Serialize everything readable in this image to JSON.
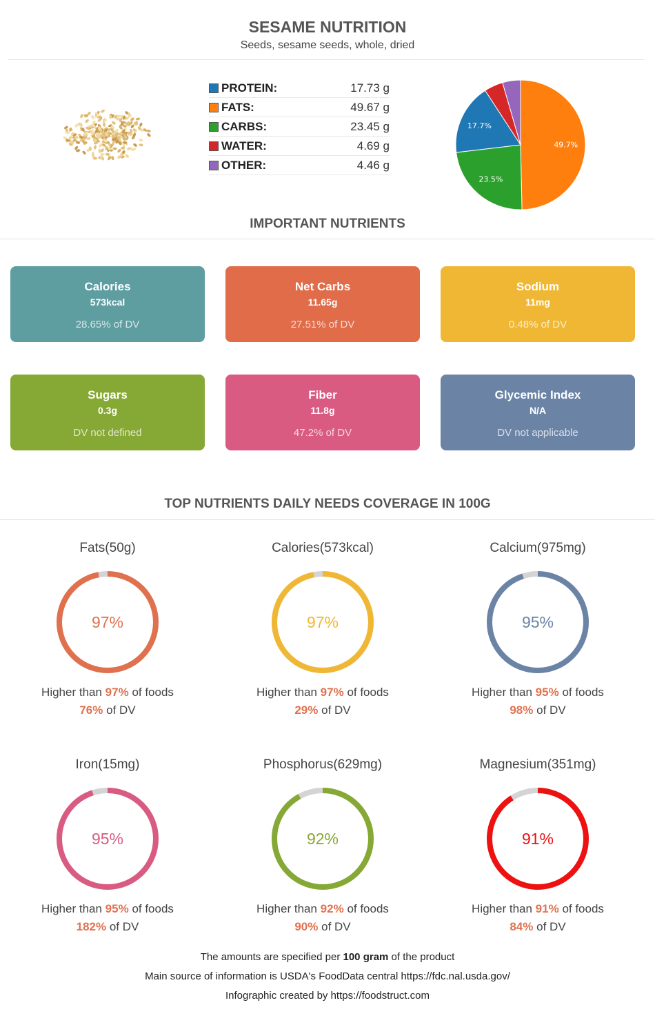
{
  "header": {
    "title": "SESAME NUTRITION",
    "subtitle": "Seeds, sesame seeds, whole, dried"
  },
  "macros": [
    {
      "label": "PROTEIN:",
      "value": "17.73 g",
      "color": "#1f77b4"
    },
    {
      "label": "FATS:",
      "value": "49.67 g",
      "color": "#ff7f0e"
    },
    {
      "label": "CARBS:",
      "value": "23.45 g",
      "color": "#2ca02c"
    },
    {
      "label": "WATER:",
      "value": "4.69 g",
      "color": "#d62728"
    },
    {
      "label": "OTHER:",
      "value": "4.46 g",
      "color": "#9467bd"
    }
  ],
  "chart_data": {
    "type": "pie",
    "slices": [
      {
        "label": "49.7%",
        "value": 49.7,
        "color": "#ff7f0e"
      },
      {
        "label": "23.5%",
        "value": 23.5,
        "color": "#2ca02c"
      },
      {
        "label": "17.7%",
        "value": 17.7,
        "color": "#1f77b4"
      },
      {
        "label": "",
        "value": 4.7,
        "color": "#d62728"
      },
      {
        "label": "",
        "value": 4.5,
        "color": "#9467bd"
      }
    ]
  },
  "important": {
    "title": "IMPORTANT NUTRIENTS",
    "cards": [
      {
        "name": "Calories",
        "value": "573kcal",
        "dv": "28.65% of DV",
        "color": "#5f9ea0"
      },
      {
        "name": "Net Carbs",
        "value": "11.65g",
        "dv": "27.51% of DV",
        "color": "#e06c4a"
      },
      {
        "name": "Sodium",
        "value": "11mg",
        "dv": "0.48% of DV",
        "color": "#f0b734"
      },
      {
        "name": "Sugars",
        "value": "0.3g",
        "dv": "DV not defined",
        "color": "#86a834"
      },
      {
        "name": "Fiber",
        "value": "11.8g",
        "dv": "47.2% of DV",
        "color": "#d95b82"
      },
      {
        "name": "Glycemic Index",
        "value": "N/A",
        "dv": "DV not applicable",
        "color": "#6b84a6"
      }
    ]
  },
  "coverage": {
    "title": "TOP NUTRIENTS DAILY NEEDS COVERAGE IN 100G",
    "text_prefix": "Higher than",
    "text_suffix": "of foods",
    "dv_suffix": "of DV",
    "items": [
      {
        "title": "Fats(50g)",
        "percent": 97,
        "label": "97%",
        "higher": "97%",
        "dv": "76%",
        "color": "#e0714f"
      },
      {
        "title": "Calories(573kcal)",
        "percent": 97,
        "label": "97%",
        "higher": "97%",
        "dv": "29%",
        "color": "#f0b734"
      },
      {
        "title": "Calcium(975mg)",
        "percent": 95,
        "label": "95%",
        "higher": "95%",
        "dv": "98%",
        "color": "#6b84a6"
      },
      {
        "title": "Iron(15mg)",
        "percent": 95,
        "label": "95%",
        "higher": "95%",
        "dv": "182%",
        "color": "#d95b82"
      },
      {
        "title": "Phosphorus(629mg)",
        "percent": 92,
        "label": "92%",
        "higher": "92%",
        "dv": "90%",
        "color": "#86a834"
      },
      {
        "title": "Magnesium(351mg)",
        "percent": 91,
        "label": "91%",
        "higher": "91%",
        "dv": "84%",
        "color": "#ee1111"
      }
    ]
  },
  "footer": {
    "line1_pre": "The amounts are specified per",
    "line1_bold": "100 gram",
    "line1_post": "of the product",
    "line2": "Main source of information is USDA's FoodData central https://fdc.nal.usda.gov/",
    "line3": "Infographic created by https://foodstruct.com"
  }
}
